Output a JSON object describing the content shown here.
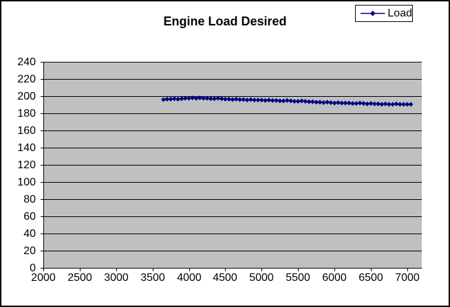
{
  "chart_data": {
    "type": "line",
    "title": "Engine Load Desired",
    "xlabel": "",
    "ylabel": "",
    "grid": true,
    "legend_position": "top-right",
    "xlim": [
      2000,
      7200
    ],
    "ylim": [
      0,
      240
    ],
    "x_ticks": [
      2000,
      2500,
      3000,
      3500,
      4000,
      4500,
      5000,
      5500,
      6000,
      6500,
      7000
    ],
    "y_ticks": [
      0,
      20,
      40,
      60,
      80,
      100,
      120,
      140,
      160,
      180,
      200,
      220,
      240
    ],
    "colors": {
      "plot_bg": "#C0C0C0",
      "gridline": "#000000",
      "axis": "#000000",
      "series": "#000080",
      "chart_border": "#000000",
      "legend_border": "#000000"
    },
    "series": [
      {
        "name": "Load",
        "marker": "diamond",
        "color": "#000080",
        "points": [
          [
            3650,
            196
          ],
          [
            3700,
            196.5
          ],
          [
            3750,
            196.5
          ],
          [
            3800,
            197
          ],
          [
            3850,
            196.5
          ],
          [
            3900,
            197
          ],
          [
            3950,
            197.5
          ],
          [
            4000,
            197.5
          ],
          [
            4050,
            198
          ],
          [
            4100,
            197.5
          ],
          [
            4150,
            198
          ],
          [
            4200,
            197.5
          ],
          [
            4250,
            197.5
          ],
          [
            4300,
            197
          ],
          [
            4350,
            197
          ],
          [
            4400,
            197.5
          ],
          [
            4450,
            197
          ],
          [
            4500,
            196.5
          ],
          [
            4550,
            196.5
          ],
          [
            4600,
            196
          ],
          [
            4650,
            196.5
          ],
          [
            4700,
            196
          ],
          [
            4750,
            196
          ],
          [
            4800,
            195.5
          ],
          [
            4850,
            196
          ],
          [
            4900,
            195.5
          ],
          [
            4950,
            195.5
          ],
          [
            5000,
            195.5
          ],
          [
            5050,
            195
          ],
          [
            5100,
            195.5
          ],
          [
            5150,
            195
          ],
          [
            5200,
            195
          ],
          [
            5250,
            194.5
          ],
          [
            5300,
            194.5
          ],
          [
            5350,
            195
          ],
          [
            5400,
            194.5
          ],
          [
            5450,
            194
          ],
          [
            5500,
            194
          ],
          [
            5550,
            194.5
          ],
          [
            5600,
            194
          ],
          [
            5650,
            193.5
          ],
          [
            5700,
            193.5
          ],
          [
            5750,
            193
          ],
          [
            5800,
            193
          ],
          [
            5850,
            192.5
          ],
          [
            5900,
            193
          ],
          [
            5950,
            192.5
          ],
          [
            6000,
            192
          ],
          [
            6050,
            192.5
          ],
          [
            6100,
            192
          ],
          [
            6150,
            192
          ],
          [
            6200,
            192
          ],
          [
            6250,
            191.5
          ],
          [
            6300,
            191.5
          ],
          [
            6350,
            192
          ],
          [
            6400,
            191.5
          ],
          [
            6450,
            191
          ],
          [
            6500,
            191.5
          ],
          [
            6550,
            191
          ],
          [
            6600,
            191
          ],
          [
            6650,
            190.5
          ],
          [
            6700,
            191
          ],
          [
            6750,
            190.5
          ],
          [
            6800,
            190.5
          ],
          [
            6850,
            191
          ],
          [
            6900,
            190.5
          ],
          [
            6950,
            190.5
          ],
          [
            7000,
            190.5
          ],
          [
            7050,
            190.5
          ]
        ]
      }
    ]
  }
}
